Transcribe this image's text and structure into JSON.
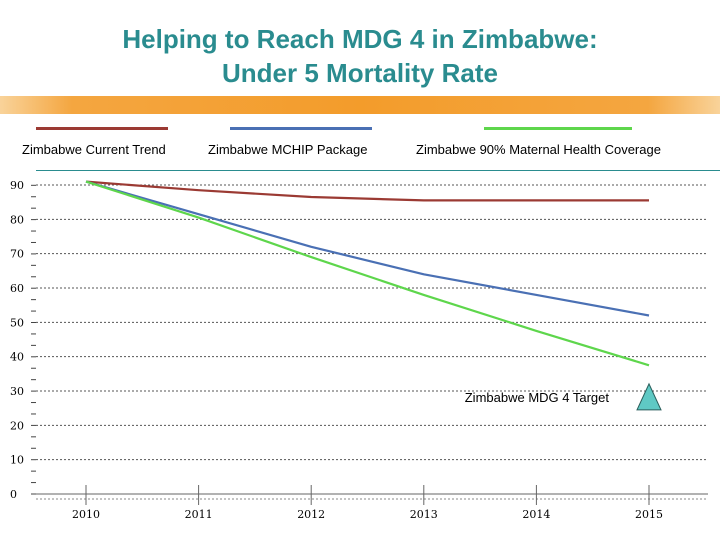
{
  "title_line1": "Helping to Reach MDG 4 in Zimbabwe:",
  "title_line2": "Under 5 Mortality Rate",
  "chart_data": {
    "type": "line",
    "title": "Helping to Reach MDG 4 in Zimbabwe: Under 5 Mortality Rate",
    "x": [
      2010,
      2011,
      2012,
      2013,
      2014,
      2015
    ],
    "x_tick_labels": [
      "2010",
      "2011",
      "2012",
      "2013",
      "2014",
      "2015"
    ],
    "y_tick_labels": [
      "0",
      "10",
      "20",
      "30",
      "40",
      "50",
      "60",
      "70",
      "80",
      "90"
    ],
    "ylim": [
      0,
      90
    ],
    "xlim": [
      2010,
      2015
    ],
    "grid": true,
    "legend_position": "top",
    "series": [
      {
        "name": "Zimbabwe Current Trend",
        "color": "#9b3a33",
        "values": [
          91,
          88.5,
          86.5,
          85.5,
          85.5,
          85.5
        ]
      },
      {
        "name": "Zimbabwe MCHIP Package",
        "color": "#4a70b4",
        "values": [
          91,
          81.5,
          72,
          64,
          58,
          52
        ]
      },
      {
        "name": "Zimbabwe 90% Maternal Health Coverage",
        "color": "#5ed64c",
        "values": [
          91,
          80.5,
          69,
          58,
          47.5,
          37.5
        ]
      }
    ],
    "annotations": [
      {
        "text": "Zimbabwe MDG 4 Target",
        "x": 2015,
        "y": 28,
        "marker": "triangle",
        "marker_color": "#5fc9c4"
      }
    ]
  }
}
